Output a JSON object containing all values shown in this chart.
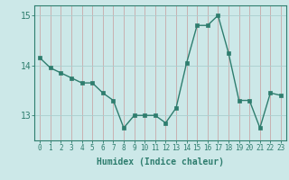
{
  "x": [
    0,
    1,
    2,
    3,
    4,
    5,
    6,
    7,
    8,
    9,
    10,
    11,
    12,
    13,
    14,
    15,
    16,
    17,
    18,
    19,
    20,
    21,
    22,
    23
  ],
  "y": [
    14.15,
    13.95,
    13.85,
    13.75,
    13.65,
    13.65,
    13.45,
    13.3,
    12.75,
    13.0,
    13.0,
    13.0,
    12.85,
    13.15,
    14.05,
    14.8,
    14.8,
    15.0,
    14.25,
    13.3,
    13.3,
    12.75,
    13.45,
    13.4
  ],
  "xlabel": "Humidex (Indice chaleur)",
  "ylim": [
    12.5,
    15.2
  ],
  "yticks": [
    13,
    14,
    15
  ],
  "xticks": [
    0,
    1,
    2,
    3,
    4,
    5,
    6,
    7,
    8,
    9,
    10,
    11,
    12,
    13,
    14,
    15,
    16,
    17,
    18,
    19,
    20,
    21,
    22,
    23
  ],
  "line_color": "#2e7d6e",
  "marker_color": "#2e7d6e",
  "bg_color": "#cce8e8",
  "grid_color_v": "#c8a8a8",
  "grid_color_h": "#aacece",
  "axis_color": "#2e7d6e",
  "tick_color": "#2e7d6e",
  "label_color": "#2e7d6e"
}
